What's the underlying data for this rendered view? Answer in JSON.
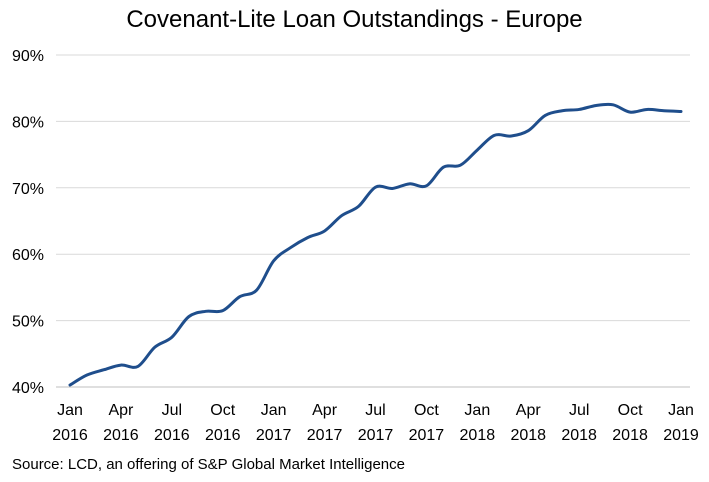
{
  "chart_data": {
    "type": "line",
    "title": "Covenant-Lite Loan Outstandings - Europe",
    "source": "Source: LCD, an offering of S&P Global Market Intelligence",
    "xlabel": "",
    "ylabel": "",
    "ylim": [
      40,
      90
    ],
    "yticks": [
      40,
      50,
      60,
      70,
      80,
      90
    ],
    "ytick_labels": [
      "40%",
      "50%",
      "60%",
      "70%",
      "80%",
      "90%"
    ],
    "grid": true,
    "legend": "none",
    "xticks": [
      {
        "month": "Jan",
        "year": "2016"
      },
      {
        "month": "Apr",
        "year": "2016"
      },
      {
        "month": "Jul",
        "year": "2016"
      },
      {
        "month": "Oct",
        "year": "2016"
      },
      {
        "month": "Jan",
        "year": "2017"
      },
      {
        "month": "Apr",
        "year": "2017"
      },
      {
        "month": "Jul",
        "year": "2017"
      },
      {
        "month": "Oct",
        "year": "2017"
      },
      {
        "month": "Jan",
        "year": "2018"
      },
      {
        "month": "Apr",
        "year": "2018"
      },
      {
        "month": "Jul",
        "year": "2018"
      },
      {
        "month": "Oct",
        "year": "2018"
      },
      {
        "month": "Jan",
        "year": "2019"
      }
    ],
    "x": [
      "2016-01",
      "2016-02",
      "2016-03",
      "2016-04",
      "2016-05",
      "2016-06",
      "2016-07",
      "2016-08",
      "2016-09",
      "2016-10",
      "2016-11",
      "2016-12",
      "2017-01",
      "2017-02",
      "2017-03",
      "2017-04",
      "2017-05",
      "2017-06",
      "2017-07",
      "2017-08",
      "2017-09",
      "2017-10",
      "2017-11",
      "2017-12",
      "2018-01",
      "2018-02",
      "2018-03",
      "2018-04",
      "2018-05",
      "2018-06",
      "2018-07",
      "2018-08",
      "2018-09",
      "2018-10",
      "2018-11",
      "2018-12",
      "2019-01"
    ],
    "series": [
      {
        "color": "#1f4e8c",
        "values": [
          40.3,
          41.8,
          42.6,
          43.3,
          43.1,
          46.0,
          47.5,
          50.6,
          51.4,
          51.5,
          53.6,
          54.6,
          59.0,
          61.0,
          62.5,
          63.5,
          65.8,
          67.2,
          70.1,
          69.9,
          70.6,
          70.3,
          73.1,
          73.4,
          75.7,
          77.9,
          77.8,
          78.6,
          80.9,
          81.6,
          81.8,
          82.4,
          82.5,
          81.4,
          81.8,
          81.6,
          81.5
        ]
      }
    ]
  }
}
